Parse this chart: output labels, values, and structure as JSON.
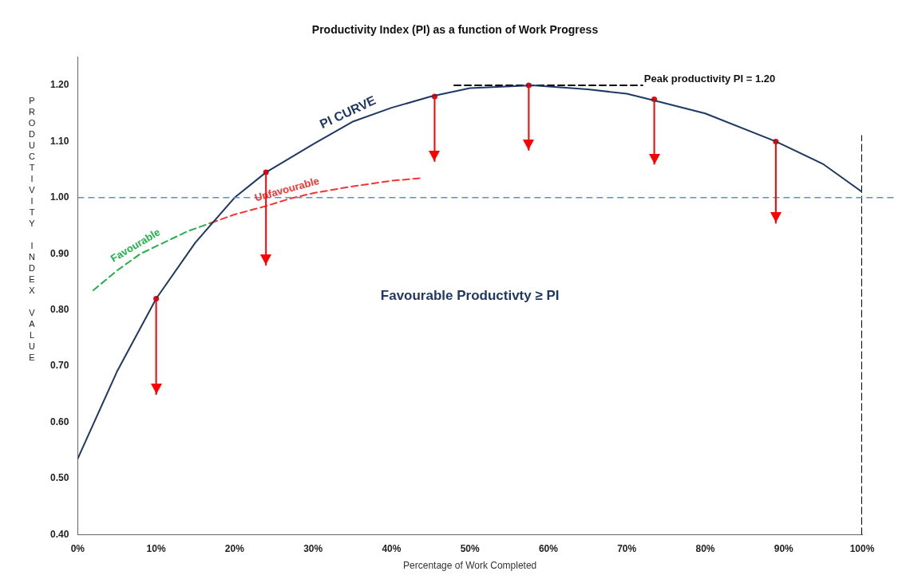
{
  "chart_data": {
    "type": "line",
    "title": "Productivity Index (PI) as a function of Work Progress",
    "xlabel": "Percentage of Work Completed",
    "ylabel": "PRODUCTIVITY INDEX VALUE",
    "xlim": [
      0,
      100
    ],
    "ylim": [
      0.4,
      1.25
    ],
    "xticks": [
      {
        "value": 0,
        "label": "0%"
      },
      {
        "value": 10,
        "label": "10%"
      },
      {
        "value": 20,
        "label": "20%"
      },
      {
        "value": 30,
        "label": "30%"
      },
      {
        "value": 40,
        "label": "40%"
      },
      {
        "value": 50,
        "label": "50%"
      },
      {
        "value": 60,
        "label": "60%"
      },
      {
        "value": 70,
        "label": "70%"
      },
      {
        "value": 80,
        "label": "80%"
      },
      {
        "value": 90,
        "label": "90%"
      },
      {
        "value": 100,
        "label": "100%"
      }
    ],
    "yticks": [
      {
        "value": 0.4,
        "label": "0.40"
      },
      {
        "value": 0.5,
        "label": "0.50"
      },
      {
        "value": 0.6,
        "label": "0.60"
      },
      {
        "value": 0.7,
        "label": "0.70"
      },
      {
        "value": 0.8,
        "label": "0.80"
      },
      {
        "value": 0.9,
        "label": "0.90"
      },
      {
        "value": 1.0,
        "label": "1.00"
      },
      {
        "value": 1.1,
        "label": "1.10"
      },
      {
        "value": 1.2,
        "label": "1.20"
      }
    ],
    "grid": false,
    "legend": false,
    "marker": "none",
    "series": [
      {
        "name": "PI CURVE",
        "color": "#1f3864",
        "x": [
          0,
          5,
          10,
          15,
          20,
          24,
          30,
          35,
          40,
          45,
          50,
          58,
          65,
          70,
          73.5,
          80,
          89,
          95,
          100
        ],
        "values": [
          0.535,
          0.69,
          0.82,
          0.92,
          1.0,
          1.045,
          1.095,
          1.135,
          1.16,
          1.18,
          1.195,
          1.2,
          1.193,
          1.185,
          1.173,
          1.15,
          1.1,
          1.06,
          1.01
        ]
      },
      {
        "name": "Unfavourable",
        "color": "#ff3030",
        "line_style": "dashed",
        "x": [
          17,
          20,
          24,
          27,
          30,
          35,
          40,
          44
        ],
        "values": [
          0.955,
          0.97,
          0.985,
          0.998,
          1.008,
          1.02,
          1.03,
          1.035
        ]
      },
      {
        "name": "Favourable",
        "color": "#22b14c",
        "line_style": "dashed",
        "x": [
          2,
          5,
          8,
          11,
          14,
          17
        ],
        "values": [
          0.835,
          0.87,
          0.9,
          0.92,
          0.94,
          0.955
        ]
      },
      {
        "color": "#000000",
        "line_style": "dashed",
        "x": [
          48,
          72
        ],
        "values": [
          1.2,
          1.2
        ]
      },
      {
        "color": "#000000",
        "line_style": "dashed",
        "x": [
          100,
          100
        ],
        "values": [
          0.4,
          1.11
        ]
      },
      {
        "type": "scatter",
        "color": "#ff0000",
        "marker": "circle",
        "x": [
          10,
          24,
          45.5,
          57.5,
          73.5,
          89
        ],
        "values": [
          0.82,
          1.045,
          1.18,
          1.2,
          1.175,
          1.1
        ],
        "errors": [
          [
            0.65,
            0.82
          ],
          [
            0.88,
            1.045
          ],
          [
            1.065,
            1.18
          ],
          [
            1.085,
            1.2
          ],
          [
            1.06,
            1.175
          ],
          [
            0.955,
            1.1
          ]
        ]
      }
    ],
    "ref_lines": [
      {
        "axis": "y",
        "value": 1.0,
        "color": "#5b8fd6",
        "line_style": "dashed"
      }
    ],
    "annotations": [
      {
        "text": "Peak productivity PI = 1.20",
        "x": 72,
        "y": 1.2
      },
      "Favourable Productivty ≥ PI"
    ]
  }
}
